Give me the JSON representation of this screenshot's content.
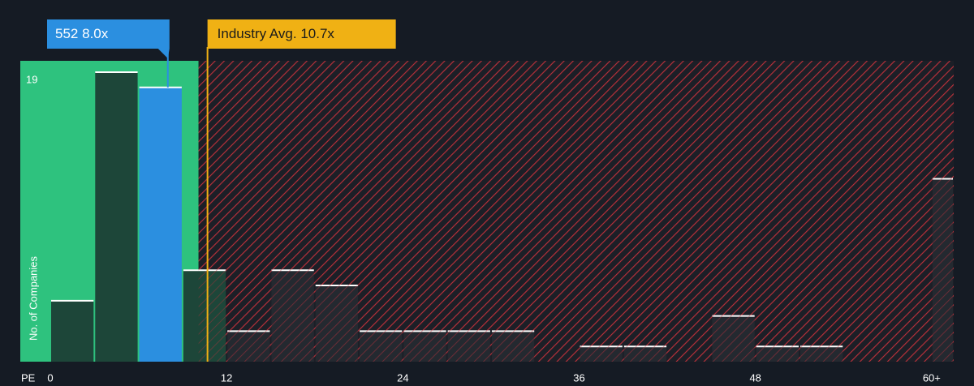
{
  "chart_data": {
    "type": "histogram",
    "x_label": "PE",
    "y_label": "No. of Companies",
    "bins": [
      0,
      3,
      6,
      9,
      12,
      15,
      18,
      21,
      24,
      27,
      30,
      33,
      36,
      39,
      42,
      45,
      48,
      51,
      54,
      57,
      60,
      61.5
    ],
    "values": [
      4,
      19,
      18,
      6,
      2,
      6,
      5,
      2,
      2,
      2,
      2,
      0,
      1,
      1,
      0,
      3,
      1,
      1,
      0,
      0,
      12
    ],
    "xlim": [
      0,
      61.5
    ],
    "ylim": [
      0,
      19
    ],
    "xticks": [
      0,
      12,
      24,
      36,
      48,
      {
        "value": 60,
        "label": "60+"
      }
    ],
    "yticks": [
      19
    ],
    "company": {
      "label": "552",
      "value": 8.0,
      "value_label": "8.0x",
      "color": "#2b8fe0"
    },
    "industry": {
      "label": "Industry Avg.",
      "value": 10.7,
      "value_label": "10.7x",
      "color": "#f0b114"
    },
    "colors": {
      "below": "#2ec27e",
      "above": "#e2363f"
    }
  }
}
